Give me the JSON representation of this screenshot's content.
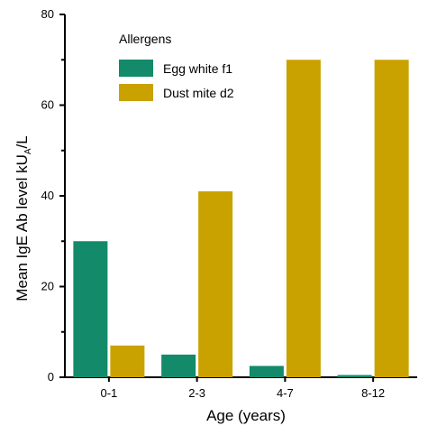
{
  "chart_data": {
    "type": "bar",
    "title": "",
    "xlabel": "Age (years)",
    "ylabel": "Mean IgE Ab level kU",
    "ylabel_subscript": "A",
    "ylabel_unit_suffix": "/L",
    "ylim": [
      0,
      80
    ],
    "yticks": [
      0,
      20,
      40,
      60,
      80
    ],
    "categories": [
      "0-1",
      "2-3",
      "4-7",
      "8-12"
    ],
    "legend": {
      "title": "Allergens",
      "placement": "top-left"
    },
    "series": [
      {
        "name": "Egg white f1",
        "color": "#138a6a",
        "values": [
          30,
          5,
          2.5,
          0.5
        ]
      },
      {
        "name": "Dust mite d2",
        "color": "#c9a200",
        "values": [
          7,
          41,
          70,
          70
        ]
      }
    ]
  }
}
